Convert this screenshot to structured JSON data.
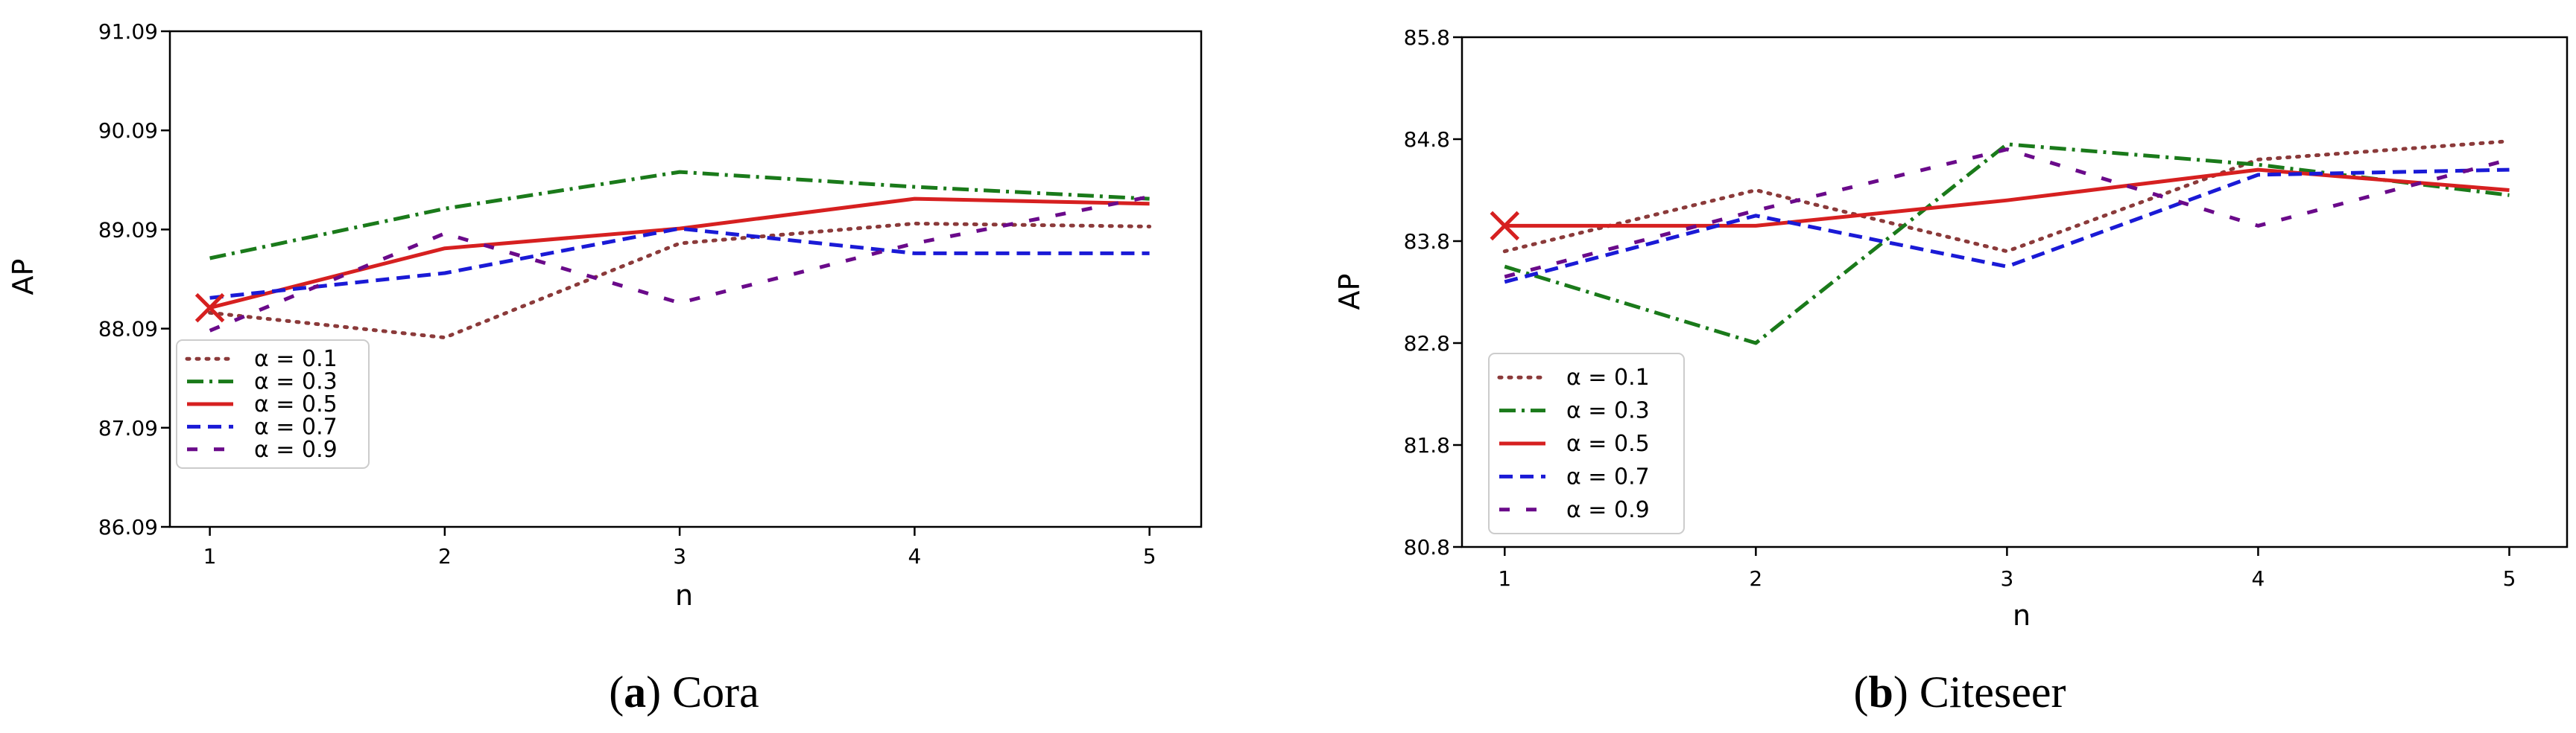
{
  "chart_data": [
    {
      "type": "line",
      "caption_letter": "a",
      "caption_text": "Cora",
      "xlabel": "n",
      "ylabel": "AP",
      "x": [
        1,
        2,
        3,
        4,
        5
      ],
      "xticks": [
        "1",
        "2",
        "3",
        "4",
        "5"
      ],
      "yticks": [
        "86.09",
        "87.09",
        "88.09",
        "89.09",
        "90.09",
        "91.09"
      ],
      "ylim": [
        86.09,
        91.09
      ],
      "xlim": [
        0.83,
        5.22
      ],
      "legend_position": "lower-left",
      "marker": {
        "x": 1,
        "y": 88.3,
        "symbol": "x",
        "color": "#d62020"
      },
      "series": [
        {
          "name": "α = 0.1",
          "color": "#8b3a3a",
          "dash": "dot",
          "values": [
            88.25,
            88.0,
            88.95,
            89.15,
            89.12
          ]
        },
        {
          "name": "α = 0.3",
          "color": "#1a7a1a",
          "dash": "dashdot",
          "values": [
            88.8,
            89.3,
            89.67,
            89.52,
            89.4
          ]
        },
        {
          "name": "α = 0.5",
          "color": "#d62020",
          "dash": "solid",
          "values": [
            88.3,
            88.9,
            89.1,
            89.4,
            89.35
          ]
        },
        {
          "name": "α = 0.7",
          "color": "#1a1ad6",
          "dash": "dash",
          "values": [
            88.4,
            88.65,
            89.1,
            88.85,
            88.85
          ]
        },
        {
          "name": "α = 0.9",
          "color": "#6a0a8a",
          "dash": "loose",
          "values": [
            88.07,
            89.05,
            88.35,
            88.95,
            89.42
          ]
        }
      ]
    },
    {
      "type": "line",
      "caption_letter": "b",
      "caption_text": "Citeseer",
      "xlabel": "n",
      "ylabel": "AP",
      "x": [
        1,
        2,
        3,
        4,
        5
      ],
      "xticks": [
        "1",
        "2",
        "3",
        "4",
        "5"
      ],
      "yticks": [
        "80.8",
        "81.8",
        "82.8",
        "83.8",
        "84.8",
        "85.8"
      ],
      "ylim": [
        80.8,
        85.8
      ],
      "xlim": [
        0.83,
        5.23
      ],
      "legend_position": "lower-left",
      "marker": {
        "x": 1,
        "y": 83.95,
        "symbol": "x",
        "color": "#d62020"
      },
      "series": [
        {
          "name": "α = 0.1",
          "color": "#8b3a3a",
          "dash": "dot",
          "values": [
            83.7,
            84.3,
            83.7,
            84.6,
            84.78
          ]
        },
        {
          "name": "α = 0.3",
          "color": "#1a7a1a",
          "dash": "dashdot",
          "values": [
            83.55,
            82.8,
            84.75,
            84.55,
            84.25
          ]
        },
        {
          "name": "α = 0.5",
          "color": "#d62020",
          "dash": "solid",
          "values": [
            83.95,
            83.95,
            84.2,
            84.5,
            84.3
          ]
        },
        {
          "name": "α = 0.7",
          "color": "#1a1ad6",
          "dash": "dash",
          "values": [
            83.4,
            84.05,
            83.55,
            84.45,
            84.5
          ]
        },
        {
          "name": "α = 0.9",
          "color": "#6a0a8a",
          "dash": "loose",
          "values": [
            83.45,
            84.1,
            84.7,
            83.95,
            84.6
          ]
        }
      ]
    }
  ]
}
